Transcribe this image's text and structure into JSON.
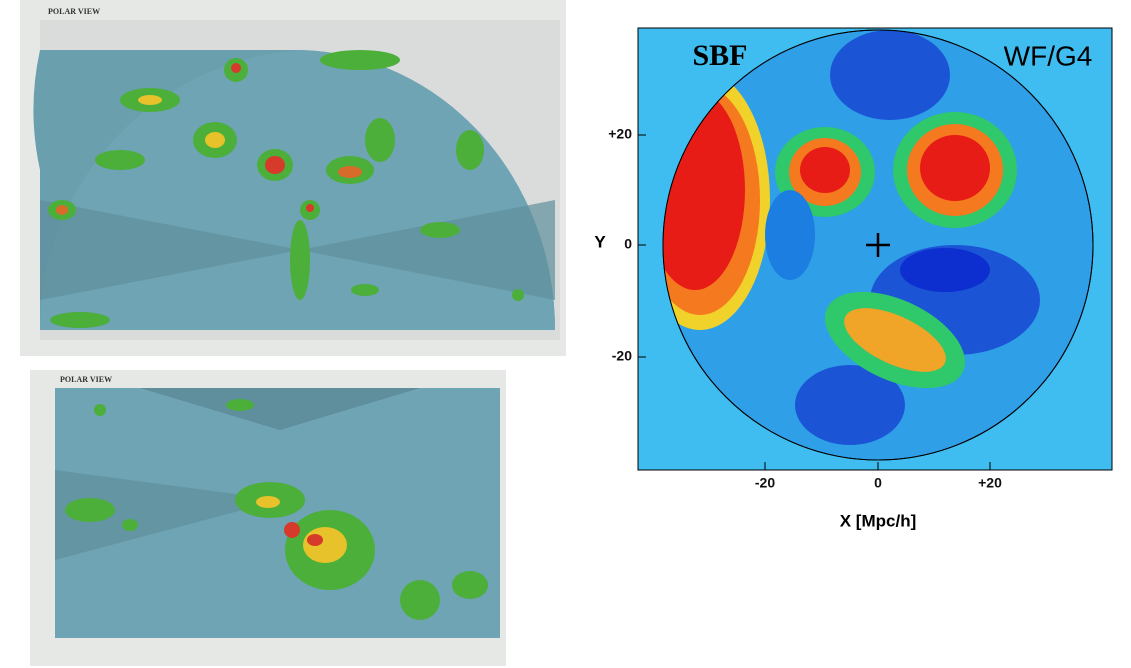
{
  "panels": [
    {
      "title": "POLAR VIEW"
    },
    {
      "title": "POLAR VIEW"
    }
  ],
  "map": {
    "left_label": "SBF",
    "right_label": "WF/G4",
    "y_axis_label": "Y",
    "x_axis_label": "X [Mpc/h]",
    "y_ticks": [
      "+20",
      "0",
      "-20"
    ],
    "x_ticks": [
      "-20",
      "0",
      "+20"
    ]
  }
}
